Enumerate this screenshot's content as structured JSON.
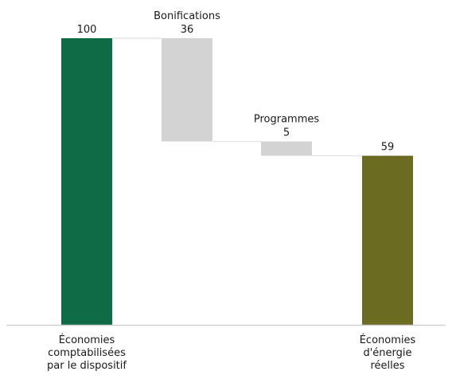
{
  "chart_data": {
    "type": "bar",
    "subtype": "waterfall",
    "title": "",
    "xlabel": "",
    "ylabel": "",
    "ylim": [
      0,
      100
    ],
    "grid": false,
    "legend": "none",
    "steps": [
      {
        "kind": "total",
        "value": 100,
        "value_label": "100",
        "name": "",
        "category_lines": [
          "Économies",
          "comptabilisées",
          "par le dispositif"
        ],
        "color": "#0f6b45"
      },
      {
        "kind": "decrease",
        "value": 36,
        "value_label": "36",
        "name": "Bonifications",
        "category_lines": [],
        "color": "#d3d3d3"
      },
      {
        "kind": "decrease",
        "value": 5,
        "value_label": "5",
        "name": "Programmes",
        "category_lines": [],
        "color": "#d3d3d3"
      },
      {
        "kind": "total",
        "value": 59,
        "value_label": "59",
        "name": "",
        "category_lines": [
          "Économies",
          "d'énergie",
          "réelles"
        ],
        "color": "#6b6b22"
      }
    ],
    "connector_color": "#e6e6e6",
    "axis_color": "#cfcfcf"
  }
}
